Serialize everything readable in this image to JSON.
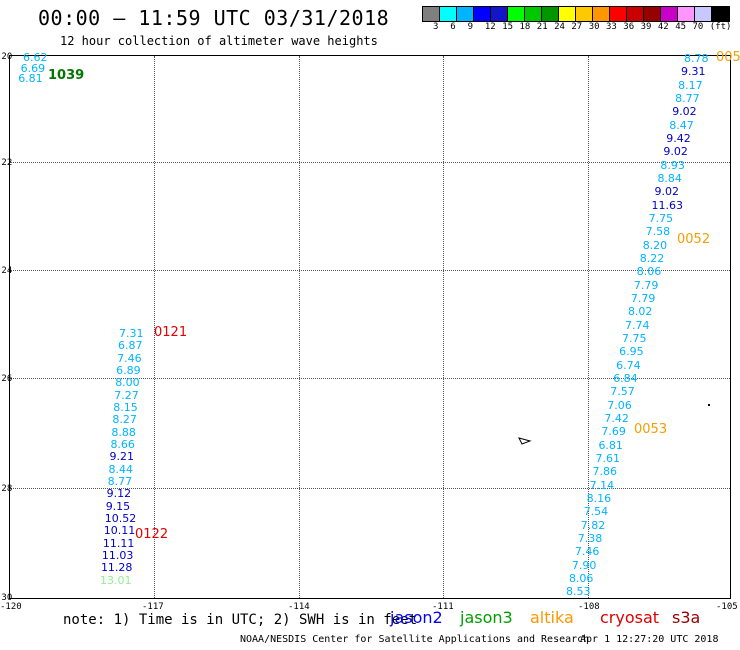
{
  "title": "00:00 – 11:59 UTC 03/31/2018",
  "subtitle": "12 hour collection of altimeter wave heights",
  "scale": {
    "colors": [
      "#7f7f7f",
      "#00ffff",
      "#00b4ff",
      "#0000ff",
      "#1414c8",
      "#00ff00",
      "#00c800",
      "#009600",
      "#ffff00",
      "#ffc800",
      "#ff9600",
      "#ff0000",
      "#c80000",
      "#960000",
      "#c800c8",
      "#ff96ff",
      "#c8c8ff",
      "#000000"
    ],
    "labels": [
      "3",
      "6",
      "9",
      "12",
      "15",
      "18",
      "21",
      "24",
      "27",
      "30",
      "33",
      "36",
      "39",
      "42",
      "45",
      "70",
      "(ft)"
    ]
  },
  "axes": {
    "lat_labels": [
      "-20",
      "-22",
      "-24",
      "-26",
      "-28",
      "-30"
    ],
    "lon_labels": [
      "-120",
      "-117",
      "-114",
      "-111",
      "-108",
      "-105"
    ]
  },
  "tracks": [
    {
      "name": "left-top",
      "items": [
        {
          "v": "6.62",
          "c": "#00b4ff"
        },
        {
          "v": "6.69",
          "c": "#00b4ff"
        },
        {
          "v": "6.81",
          "c": "#00b4ff"
        }
      ]
    },
    {
      "name": "left",
      "items": [
        {
          "v": "7.31",
          "c": "#00b4ff"
        },
        {
          "v": "6.87",
          "c": "#00b4ff"
        },
        {
          "v": "7.46",
          "c": "#00b4ff"
        },
        {
          "v": "6.89",
          "c": "#00b4ff"
        },
        {
          "v": "8.00",
          "c": "#00b4ff"
        },
        {
          "v": "7.27",
          "c": "#00b4ff"
        },
        {
          "v": "8.15",
          "c": "#00b4ff"
        },
        {
          "v": "8.27",
          "c": "#00b4ff"
        },
        {
          "v": "8.88",
          "c": "#00b4ff"
        },
        {
          "v": "8.66",
          "c": "#00b4ff"
        },
        {
          "v": "9.21",
          "c": "#0000c8"
        },
        {
          "v": "8.44",
          "c": "#00b4ff"
        },
        {
          "v": "8.77",
          "c": "#00b4ff"
        },
        {
          "v": "9.12",
          "c": "#0000c8"
        },
        {
          "v": "9.15",
          "c": "#0000c8"
        },
        {
          "v": "10.52",
          "c": "#0000c8"
        },
        {
          "v": "10.11",
          "c": "#0000c8"
        },
        {
          "v": "11.11",
          "c": "#0000c8"
        },
        {
          "v": "11.03",
          "c": "#0000c8"
        },
        {
          "v": "11.28",
          "c": "#0000c8"
        },
        {
          "v": "13.01",
          "c": "#90ee90"
        }
      ]
    },
    {
      "name": "right",
      "items": [
        {
          "v": "8.78",
          "c": "#00b4ff"
        },
        {
          "v": "9.31",
          "c": "#0000c8"
        },
        {
          "v": "8.17",
          "c": "#00b4ff"
        },
        {
          "v": "8.77",
          "c": "#00b4ff"
        },
        {
          "v": "9.02",
          "c": "#0000c8"
        },
        {
          "v": "8.47",
          "c": "#00b4ff"
        },
        {
          "v": "9.42",
          "c": "#0000c8"
        },
        {
          "v": "9.02",
          "c": "#0000c8"
        },
        {
          "v": "8.93",
          "c": "#00b4ff"
        },
        {
          "v": "8.84",
          "c": "#00b4ff"
        },
        {
          "v": "9.02",
          "c": "#0000c8"
        },
        {
          "v": "11.63",
          "c": "#0000c8"
        },
        {
          "v": "7.75",
          "c": "#00b4ff"
        },
        {
          "v": "7.58",
          "c": "#00b4ff"
        },
        {
          "v": "8.20",
          "c": "#00b4ff"
        },
        {
          "v": "8.22",
          "c": "#00b4ff"
        },
        {
          "v": "8.06",
          "c": "#00b4ff"
        },
        {
          "v": "7.79",
          "c": "#00b4ff"
        },
        {
          "v": "7.79",
          "c": "#00b4ff"
        },
        {
          "v": "8.02",
          "c": "#00b4ff"
        },
        {
          "v": "7.74",
          "c": "#00b4ff"
        },
        {
          "v": "7.75",
          "c": "#00b4ff"
        },
        {
          "v": "6.95",
          "c": "#00b4ff"
        },
        {
          "v": "6.74",
          "c": "#00b4ff"
        },
        {
          "v": "6.84",
          "c": "#00b4ff"
        },
        {
          "v": "7.57",
          "c": "#00b4ff"
        },
        {
          "v": "7.06",
          "c": "#00b4ff"
        },
        {
          "v": "7.42",
          "c": "#00b4ff"
        },
        {
          "v": "7.69",
          "c": "#00b4ff"
        },
        {
          "v": "6.81",
          "c": "#00b4ff"
        },
        {
          "v": "7.61",
          "c": "#00b4ff"
        },
        {
          "v": "7.86",
          "c": "#00b4ff"
        },
        {
          "v": "7.14",
          "c": "#00b4ff"
        },
        {
          "v": "8.16",
          "c": "#00b4ff"
        },
        {
          "v": "7.54",
          "c": "#00b4ff"
        },
        {
          "v": "7.82",
          "c": "#00b4ff"
        },
        {
          "v": "7.38",
          "c": "#00b4ff"
        },
        {
          "v": "7.46",
          "c": "#00b4ff"
        },
        {
          "v": "7.90",
          "c": "#00b4ff"
        },
        {
          "v": "8.06",
          "c": "#00b4ff"
        },
        {
          "v": "8.53",
          "c": "#00b4ff"
        }
      ]
    }
  ],
  "time_labels": [
    {
      "t": "1039",
      "c": "#007800"
    },
    {
      "t": "0121",
      "c": "#e00000"
    },
    {
      "t": "0122",
      "c": "#e00000"
    },
    {
      "t": "005",
      "c": "#f0a000"
    },
    {
      "t": "0052",
      "c": "#f0a000"
    },
    {
      "t": "0053",
      "c": "#f0a000"
    }
  ],
  "note": "note: 1) Time is in UTC; 2) SWH is in feet",
  "satellites": [
    {
      "name": "jason2",
      "c": "#0000ff"
    },
    {
      "name": "jason3",
      "c": "#00a000"
    },
    {
      "name": "altika",
      "c": "#ff9600"
    },
    {
      "name": "cryosat",
      "c": "#e00000"
    },
    {
      "name": "s3a",
      "c": "#960000"
    }
  ],
  "footer_left": "NOAA/NESDIS Center for Satellite Applications and Research",
  "footer_right": "Apr  1 12:27:20 UTC 2018"
}
